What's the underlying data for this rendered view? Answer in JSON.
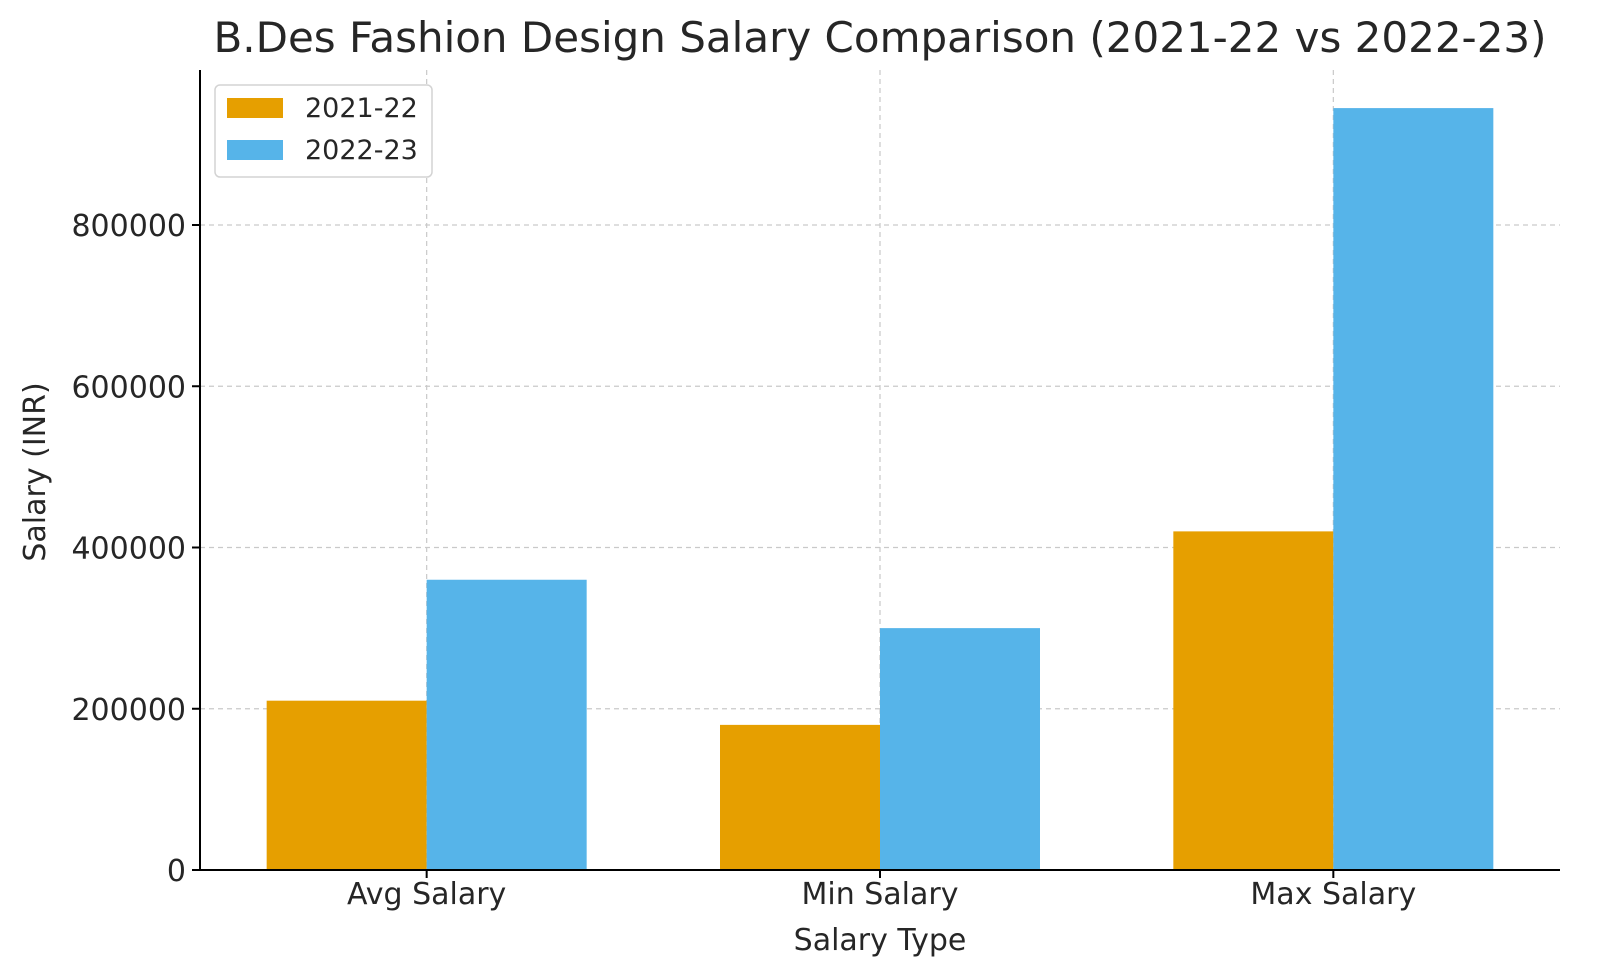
{
  "chart_data": {
    "type": "bar",
    "title": "B.Des Fashion Design Salary Comparison (2021-22 vs 2022-23)",
    "xlabel": "Salary Type",
    "ylabel": "Salary (INR)",
    "categories": [
      "Avg Salary",
      "Min Salary",
      "Max Salary"
    ],
    "series": [
      {
        "name": "2021-22",
        "color": "#E69F00",
        "values": [
          210000,
          180000,
          420000
        ]
      },
      {
        "name": "2022-23",
        "color": "#56B4E9",
        "values": [
          360000,
          300000,
          945000
        ]
      }
    ],
    "ylim": [
      0,
      1000000
    ],
    "yticks": [
      0,
      200000,
      400000,
      600000,
      800000
    ],
    "ytick_labels": [
      "0",
      "200000",
      "400000",
      "600000",
      "800000"
    ],
    "grid": true,
    "legend_position": "top-left"
  }
}
